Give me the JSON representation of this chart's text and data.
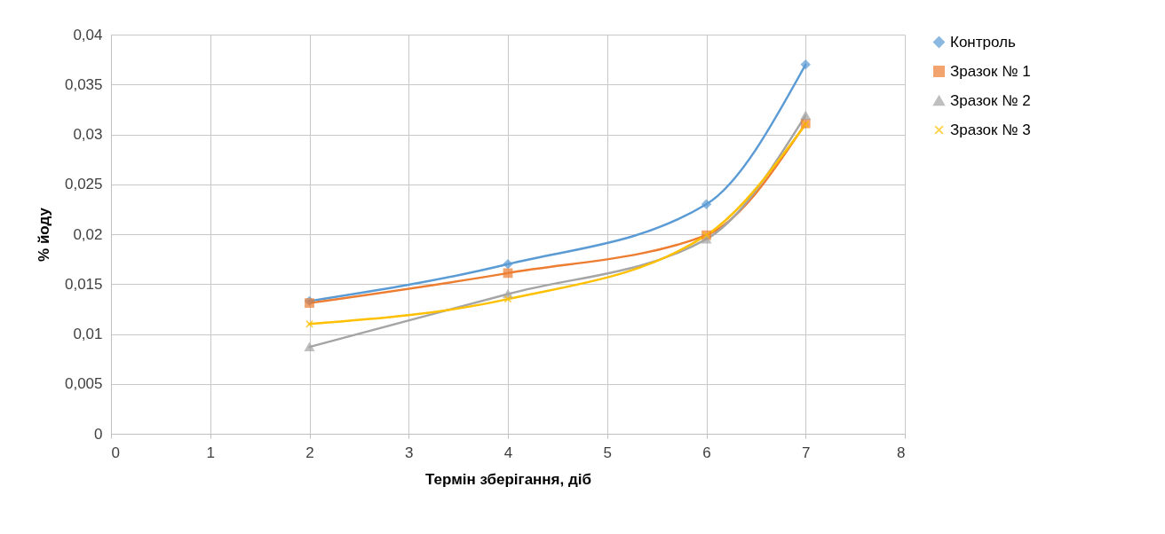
{
  "chart_data": {
    "type": "line",
    "xlabel": "Термін зберігання, діб",
    "ylabel": "% йоду",
    "x": [
      2,
      4,
      6,
      7
    ],
    "series": [
      {
        "name": "Контроль",
        "color": "#5b9bd5",
        "marker": "diamond",
        "values": [
          0.0133,
          0.017,
          0.023,
          0.037
        ]
      },
      {
        "name": "Зразок № 1",
        "color": "#ed7d31",
        "marker": "square",
        "values": [
          0.0131,
          0.0161,
          0.0199,
          0.0311
        ]
      },
      {
        "name": "Зразок № 2",
        "color": "#a5a5a5",
        "marker": "triangle",
        "values": [
          0.0087,
          0.014,
          0.0195,
          0.0319
        ]
      },
      {
        "name": "Зразок № 3",
        "color": "#ffc000",
        "marker": "cross",
        "values": [
          0.011,
          0.0135,
          0.0199,
          0.031
        ]
      }
    ],
    "xlim": [
      0,
      8
    ],
    "xticks": [
      0,
      1,
      2,
      3,
      4,
      5,
      6,
      7,
      8
    ],
    "ylim": [
      0,
      0.04
    ],
    "yticks": [
      {
        "value": 0,
        "label": "0"
      },
      {
        "value": 0.005,
        "label": "0,005"
      },
      {
        "value": 0.01,
        "label": "0,01"
      },
      {
        "value": 0.015,
        "label": "0,015"
      },
      {
        "value": 0.02,
        "label": "0,02"
      },
      {
        "value": 0.025,
        "label": "0,025"
      },
      {
        "value": 0.03,
        "label": "0,03"
      },
      {
        "value": 0.035,
        "label": "0,035"
      },
      {
        "value": 0.04,
        "label": "0,04"
      }
    ],
    "grid": true,
    "legend": "right",
    "line_style": "solid"
  }
}
